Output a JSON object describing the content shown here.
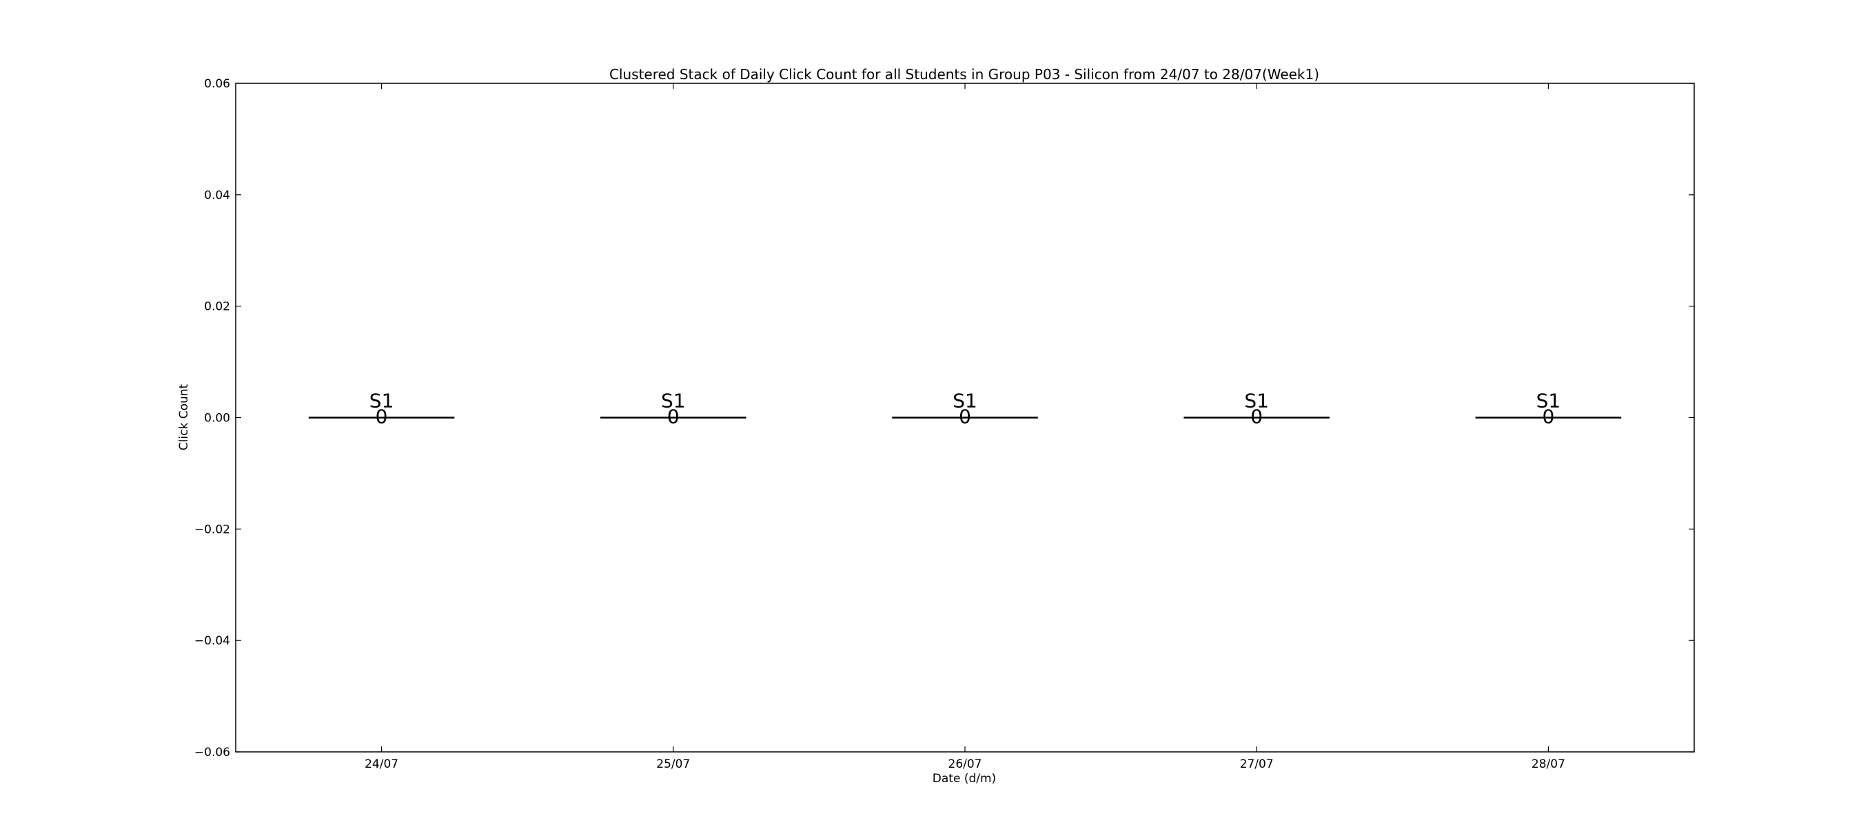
{
  "chart_data": {
    "type": "bar",
    "title": "Clustered Stack of Daily Click Count for all Students in Group P03 - Silicon from 24/07 to 28/07(Week1)",
    "xlabel": "Date (d/m)",
    "ylabel": "Click Count",
    "categories": [
      "24/07",
      "25/07",
      "26/07",
      "27/07",
      "28/07"
    ],
    "series": [
      {
        "name": "S1",
        "values": [
          0,
          0,
          0,
          0,
          0
        ]
      }
    ],
    "ylim": [
      -0.06,
      0.06
    ],
    "yticks": [
      {
        "value": 0.06,
        "label": "0.06"
      },
      {
        "value": 0.04,
        "label": "0.04"
      },
      {
        "value": 0.02,
        "label": "0.02"
      },
      {
        "value": 0.0,
        "label": "0.00"
      },
      {
        "value": -0.02,
        "label": "−0.02"
      },
      {
        "value": -0.04,
        "label": "−0.04"
      },
      {
        "value": -0.06,
        "label": "−0.06"
      }
    ],
    "value_labels": [
      "0",
      "0",
      "0",
      "0",
      "0"
    ],
    "grid": false,
    "legend": "none",
    "bar_color": "#000000"
  }
}
